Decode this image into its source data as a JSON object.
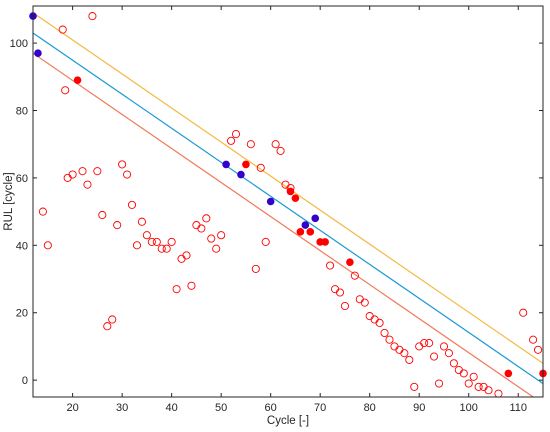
{
  "chart_data": {
    "type": "scatter",
    "title": "",
    "xlabel": "Cycle [-]",
    "ylabel": "RUL [cycle]",
    "xlim": [
      12,
      115
    ],
    "ylim": [
      -5,
      111
    ],
    "xticks": [
      20,
      30,
      40,
      50,
      60,
      70,
      80,
      90,
      100,
      110
    ],
    "yticks": [
      0,
      20,
      40,
      60,
      80,
      100
    ],
    "grid": false,
    "colors": {
      "open_marker": "#ff0000",
      "filled_red": "#ff0000",
      "filled_blue": "#3300cc",
      "line_upper": "#f5b942",
      "line_center": "#1a9ad6",
      "line_lower": "#f07a5a"
    },
    "lines": [
      {
        "role": "upper",
        "x": [
          12,
          115
        ],
        "y": [
          109,
          5
        ]
      },
      {
        "role": "center",
        "x": [
          12,
          115
        ],
        "y": [
          103,
          -1
        ]
      },
      {
        "role": "lower",
        "x": [
          12,
          115
        ],
        "y": [
          97,
          -7
        ]
      }
    ],
    "series": [
      {
        "marker": "open-circle",
        "x": [
          14,
          15,
          18,
          18.5,
          19,
          20,
          22,
          23,
          24,
          25,
          26,
          27,
          28,
          29,
          30,
          31,
          32,
          33,
          34,
          35,
          36,
          37,
          38,
          39,
          40,
          41,
          42,
          43,
          44,
          45,
          46,
          47,
          48,
          49,
          50,
          52,
          53,
          56,
          57,
          58,
          59,
          61,
          62,
          63,
          64,
          72,
          73,
          74,
          75,
          77,
          78,
          79,
          80,
          81,
          82,
          83,
          84,
          85,
          86,
          87,
          88,
          89,
          90,
          91,
          92,
          93,
          94,
          95,
          96,
          97,
          98,
          99,
          100,
          101,
          102,
          103,
          104,
          106,
          111,
          113,
          114
        ],
        "y": [
          50,
          40,
          104,
          86,
          60,
          61,
          62,
          58,
          108,
          62,
          49,
          16,
          18,
          46,
          64,
          61,
          52,
          40,
          47,
          43,
          41,
          41,
          39,
          39,
          41,
          27,
          36,
          37,
          28,
          46,
          45,
          48,
          42,
          39,
          43,
          71,
          73,
          70,
          33,
          63,
          41,
          70,
          68,
          58,
          57,
          34,
          27,
          26,
          22,
          31,
          24,
          23,
          19,
          18,
          17,
          14,
          12,
          10,
          9,
          8,
          6,
          -2,
          10,
          11,
          11,
          7,
          -1,
          10,
          8,
          5,
          3,
          2,
          -1,
          1,
          -2,
          -2,
          -3,
          -4,
          20,
          12,
          9
        ]
      },
      {
        "marker": "filled-red",
        "x": [
          21,
          55,
          64,
          65,
          66,
          68,
          70,
          71,
          76,
          108,
          115
        ],
        "y": [
          89,
          64,
          56,
          54,
          44,
          44,
          41,
          41,
          35,
          2,
          2
        ]
      },
      {
        "marker": "filled-blue",
        "x": [
          12,
          13,
          51,
          54,
          60,
          67,
          69
        ],
        "y": [
          108,
          97,
          64,
          61,
          53,
          46,
          48
        ]
      }
    ]
  }
}
